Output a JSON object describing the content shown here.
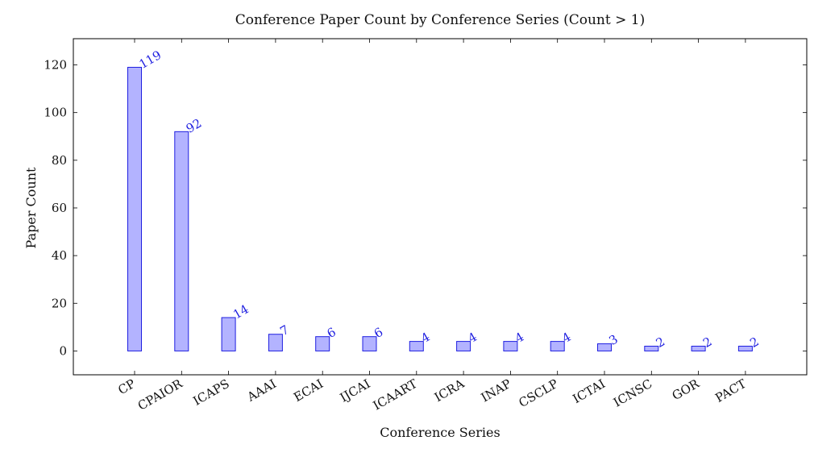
{
  "chart_data": {
    "type": "bar",
    "title": "Conference Paper Count by Conference Series (Count > 1)",
    "xlabel": "Conference Series",
    "ylabel": "Paper Count",
    "categories": [
      "CP",
      "CPAIOR",
      "ICAPS",
      "AAAI",
      "ECAI",
      "IJCAI",
      "ICAART",
      "ICRA",
      "INAP",
      "CSCLP",
      "ICTAI",
      "ICNSC",
      "GOR",
      "PACT"
    ],
    "values": [
      119,
      92,
      14,
      7,
      6,
      6,
      4,
      4,
      4,
      4,
      3,
      2,
      2,
      2
    ],
    "data_labels": [
      "119",
      "92",
      "14",
      "7",
      "6",
      "6",
      "4",
      "4",
      "4",
      "4",
      "3",
      "2",
      "2",
      "2"
    ],
    "ylim": [
      -10,
      131
    ],
    "yticks": [
      0,
      20,
      40,
      60,
      80,
      100,
      120
    ],
    "ytick_labels": [
      "0",
      "20",
      "40",
      "60",
      "80",
      "100",
      "120"
    ],
    "grid": false,
    "legend": "none",
    "colors": {
      "bar_fill": "#b3b3ff",
      "bar_stroke": "#1f1fe0",
      "label": "#1f1fe0"
    }
  }
}
